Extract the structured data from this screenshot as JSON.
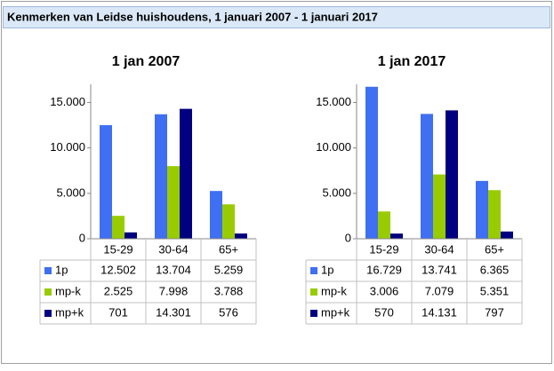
{
  "header": {
    "title": "Kenmerken van Leidse huishoudens, 1 januari 2007 - 1 januari 2017"
  },
  "chart_data": [
    {
      "type": "bar",
      "title": "1 jan 2007",
      "categories": [
        "15-29",
        "30-64",
        "65+"
      ],
      "series": [
        {
          "name": "1p",
          "color": "#3f6ff2",
          "values": [
            12502,
            13704,
            5259
          ],
          "value_labels": [
            "12.502",
            "13.704",
            "5.259"
          ]
        },
        {
          "name": "mp-k",
          "color": "#99cc00",
          "values": [
            2525,
            7998,
            3788
          ],
          "value_labels": [
            "2.525",
            "7.998",
            "3.788"
          ]
        },
        {
          "name": "mp+k",
          "color": "#000080",
          "values": [
            701,
            14301,
            576
          ],
          "value_labels": [
            "701",
            "14.301",
            "576"
          ]
        }
      ],
      "ylim": [
        0,
        17000
      ],
      "yticks": [
        0,
        {
          "value": 5000,
          "label": "5.000"
        },
        {
          "value": 10000,
          "label": "10.000"
        },
        {
          "value": 15000,
          "label": "15.000"
        }
      ],
      "grid": false
    },
    {
      "type": "bar",
      "title": "1 jan 2017",
      "categories": [
        "15-29",
        "30-64",
        "65+"
      ],
      "series": [
        {
          "name": "1p",
          "color": "#3f6ff2",
          "values": [
            16729,
            13741,
            6365
          ],
          "value_labels": [
            "16.729",
            "13.741",
            "6.365"
          ]
        },
        {
          "name": "mp-k",
          "color": "#99cc00",
          "values": [
            3006,
            7079,
            5351
          ],
          "value_labels": [
            "3.006",
            "7.079",
            "5.351"
          ]
        },
        {
          "name": "mp+k",
          "color": "#000080",
          "values": [
            570,
            14131,
            797
          ],
          "value_labels": [
            "570",
            "14.131",
            "797"
          ]
        }
      ],
      "ylim": [
        0,
        17000
      ],
      "yticks": [
        0,
        {
          "value": 5000,
          "label": "5.000"
        },
        {
          "value": 10000,
          "label": "10.000"
        },
        {
          "value": 15000,
          "label": "15.000"
        }
      ],
      "grid": false
    }
  ]
}
